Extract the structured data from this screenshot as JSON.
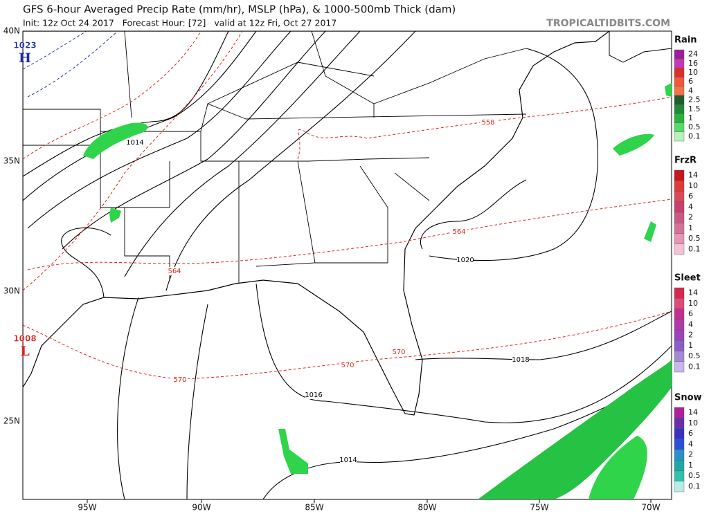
{
  "header": {
    "title": "GFS 6-hour Averaged Precip Rate (mm/hr), MSLP (hPa), & 1000-500mb Thick (dam)",
    "subtitle": "Init: 12z Oct 24 2017   Forecast Hour: [72]   valid at 12z Fri, Oct 27 2017",
    "watermark": "TROPICALTIDBITS.COM"
  },
  "axes": {
    "lon_labels": [
      "95W",
      "90W",
      "85W",
      "80W",
      "75W",
      "70W"
    ],
    "lat_labels": [
      "40N",
      "35N",
      "30N",
      "25N"
    ]
  },
  "contour_labels": [
    "1014",
    "558",
    "564",
    "1020",
    "564",
    "570",
    "1018",
    "570",
    "570",
    "1016",
    "1014"
  ],
  "pressure_centers": [
    {
      "value": "1023",
      "letter": "H"
    },
    {
      "value": "1008",
      "letter": "L"
    }
  ],
  "legend": [
    {
      "title": "Rain",
      "labels": [
        "24",
        "16",
        "10",
        "6",
        "4",
        "2.5",
        "1.5",
        "1",
        "0.5",
        "0.1"
      ]
    },
    {
      "title": "FrzR",
      "labels": [
        "14",
        "10",
        "6",
        "4",
        "2",
        "1",
        "0.5",
        "0.1"
      ]
    },
    {
      "title": "Sleet",
      "labels": [
        "14",
        "10",
        "6",
        "4",
        "2",
        "1",
        "0.5",
        "0.1"
      ]
    },
    {
      "title": "Snow",
      "labels": [
        "14",
        "10",
        "6",
        "4",
        "2",
        "1",
        "0.5",
        "0.1"
      ]
    }
  ]
}
